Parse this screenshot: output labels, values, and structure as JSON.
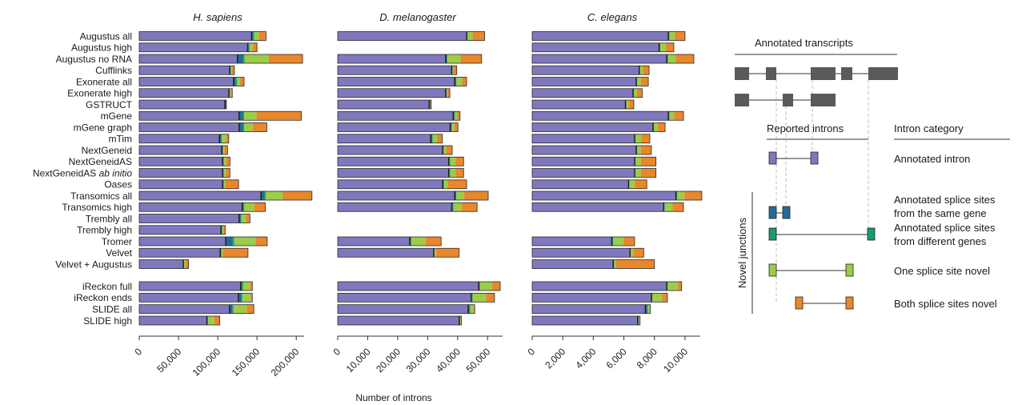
{
  "x_axis_title": "Number of introns",
  "rows": [
    {
      "label": "Augustus all"
    },
    {
      "label": "Augustus high"
    },
    {
      "label": "Augustus no RNA"
    },
    {
      "label": "Cufflinks"
    },
    {
      "label": "Exonerate all"
    },
    {
      "label": "Exonerate high"
    },
    {
      "label": "GSTRUCT"
    },
    {
      "label": "mGene"
    },
    {
      "label": "mGene graph"
    },
    {
      "label": "mTim"
    },
    {
      "label": "NextGeneid"
    },
    {
      "label": "NextGeneidAS"
    },
    {
      "label": "NextGeneidAS ",
      "label_italic": "ab initio"
    },
    {
      "label": "Oases"
    },
    {
      "label": "Transomics all"
    },
    {
      "label": "Transomics high"
    },
    {
      "label": "Trembly all"
    },
    {
      "label": "Trembly high"
    },
    {
      "label": "Tromer"
    },
    {
      "label": "Velvet"
    },
    {
      "label": "Velvet + Augustus"
    },
    {
      "label": "iReckon full"
    },
    {
      "label": "iReckon ends"
    },
    {
      "label": "SLIDE all"
    },
    {
      "label": "SLIDE high"
    }
  ],
  "chart_data": {
    "type": "bar",
    "orientation": "horizontal",
    "stacked": true,
    "categories": [
      "Augustus all",
      "Augustus high",
      "Augustus no RNA",
      "Cufflinks",
      "Exonerate all",
      "Exonerate high",
      "GSTRUCT",
      "mGene",
      "mGene graph",
      "mTim",
      "NextGeneid",
      "NextGeneidAS",
      "NextGeneidAS ab initio",
      "Oases",
      "Transomics all",
      "Transomics high",
      "Trembly all",
      "Trembly high",
      "Tromer",
      "Velvet",
      "Velvet + Augustus",
      "iReckon full",
      "iReckon ends",
      "SLIDE all",
      "SLIDE high"
    ],
    "series": [
      {
        "name": "Annotated intron",
        "color": "#7f78bd"
      },
      {
        "name": "Annotated splice sites from the same gene",
        "color": "#246b9c"
      },
      {
        "name": "Annotated splice sites from different genes",
        "color": "#1b9a6c"
      },
      {
        "name": "One splice site novel",
        "color": "#9ccc4a"
      },
      {
        "name": "Both splice sites novel",
        "color": "#e8872b"
      }
    ],
    "panels": [
      {
        "title": "H. sapiens",
        "xlim": [
          0,
          210000
        ],
        "ticks": [
          0,
          50000,
          100000,
          150000,
          200000
        ],
        "tick_labels": [
          "0",
          "50,000",
          "100,000",
          "150,000",
          "200,000"
        ],
        "values": [
          [
            143000,
            2000,
            1500,
            6000,
            9000
          ],
          [
            138000,
            1500,
            1000,
            4000,
            5500
          ],
          [
            125000,
            7000,
            2000,
            31000,
            43000
          ],
          [
            115000,
            1000,
            700,
            1500,
            3000
          ],
          [
            120000,
            3000,
            1500,
            4000,
            5000
          ],
          [
            114000,
            1000,
            500,
            1000,
            2000
          ],
          [
            109000,
            1500,
            500,
            0,
            0
          ],
          [
            127000,
            5000,
            1500,
            16000,
            57000
          ],
          [
            127000,
            5000,
            1500,
            11000,
            18000
          ],
          [
            102000,
            2000,
            1000,
            6000,
            3000
          ],
          [
            105000,
            1000,
            500,
            2000,
            4000
          ],
          [
            106000,
            1000,
            500,
            3000,
            5000
          ],
          [
            106000,
            1000,
            500,
            3000,
            5000
          ],
          [
            106000,
            1000,
            500,
            2000,
            17000
          ],
          [
            155000,
            4000,
            2000,
            22000,
            37000
          ],
          [
            131000,
            1500,
            1000,
            13000,
            14000
          ],
          [
            127000,
            2000,
            1000,
            6000,
            5000
          ],
          [
            104000,
            1000,
            500,
            2000,
            2000
          ],
          [
            110000,
            9000,
            2000,
            27000,
            15000
          ],
          [
            103000,
            1000,
            500,
            2000,
            32000
          ],
          [
            56000,
            500,
            300,
            2000,
            4000
          ],
          [
            129000,
            2000,
            1000,
            9000,
            3000
          ],
          [
            126000,
            4000,
            1000,
            11000,
            2000
          ],
          [
            115000,
            4000,
            1000,
            17000,
            9000
          ],
          [
            86000,
            1000,
            500,
            8000,
            7000
          ]
        ]
      },
      {
        "title": "D. melanogaster",
        "xlim": [
          0,
          55000
        ],
        "ticks": [
          0,
          10000,
          20000,
          30000,
          40000,
          50000
        ],
        "tick_labels": [
          "0",
          "10,000",
          "20,000",
          "30,000",
          "40,000",
          "50,000"
        ],
        "values": [
          [
            43000,
            200,
            100,
            1700,
            4000
          ],
          null,
          [
            36000,
            400,
            200,
            4400,
            7000
          ],
          [
            38000,
            200,
            100,
            400,
            1000
          ],
          [
            39000,
            400,
            200,
            1900,
            1500
          ],
          [
            36000,
            200,
            100,
            400,
            700
          ],
          [
            30500,
            300,
            100,
            0,
            300
          ],
          [
            38500,
            400,
            200,
            700,
            1000
          ],
          [
            37500,
            400,
            200,
            800,
            1200
          ],
          [
            31000,
            500,
            200,
            1400,
            1800
          ],
          [
            35000,
            300,
            100,
            800,
            2000
          ],
          [
            37000,
            300,
            200,
            1800,
            2700
          ],
          [
            37000,
            300,
            200,
            1800,
            2700
          ],
          [
            35000,
            300,
            200,
            1200,
            6300
          ],
          [
            39000,
            400,
            200,
            2600,
            8000
          ],
          [
            38000,
            400,
            200,
            2700,
            5200
          ],
          null,
          null,
          [
            24000,
            400,
            200,
            4700,
            5200
          ],
          [
            32000,
            200,
            100,
            500,
            7700
          ],
          null,
          [
            47000,
            300,
            200,
            4000,
            2700
          ],
          [
            44500,
            300,
            200,
            4500,
            2800
          ],
          [
            43500,
            500,
            200,
            1200,
            300
          ],
          [
            40500,
            200,
            100,
            300,
            200
          ]
        ]
      },
      {
        "title": "C. elegans",
        "xlim": [
          0,
          11000
        ],
        "ticks": [
          0,
          2000,
          4000,
          6000,
          8000,
          10000
        ],
        "tick_labels": [
          "0",
          "2,000",
          "4,000",
          "6,000",
          "8,000",
          "10,000"
        ],
        "values": [
          [
            8900,
            50,
            30,
            370,
            650
          ],
          [
            8300,
            50,
            20,
            380,
            520
          ],
          [
            8800,
            50,
            30,
            520,
            1180
          ],
          [
            7000,
            30,
            20,
            200,
            400
          ],
          [
            6800,
            40,
            20,
            250,
            490
          ],
          [
            6600,
            30,
            20,
            200,
            350
          ],
          [
            6100,
            30,
            20,
            150,
            350
          ],
          [
            8900,
            50,
            30,
            320,
            600
          ],
          [
            7900,
            40,
            20,
            250,
            490
          ],
          [
            6700,
            40,
            20,
            370,
            570
          ],
          [
            6800,
            40,
            20,
            250,
            690
          ],
          [
            6700,
            40,
            20,
            350,
            990
          ],
          [
            6700,
            40,
            20,
            350,
            990
          ],
          [
            6300,
            30,
            20,
            370,
            780
          ],
          [
            9400,
            50,
            30,
            480,
            1140
          ],
          [
            8600,
            50,
            30,
            510,
            710
          ],
          null,
          null,
          [
            5200,
            60,
            40,
            660,
            740
          ],
          [
            6400,
            30,
            20,
            180,
            670
          ],
          [
            5300,
            40,
            20,
            140,
            2500
          ],
          [
            8800,
            40,
            30,
            680,
            230
          ],
          [
            7800,
            40,
            30,
            640,
            340
          ],
          [
            7400,
            130,
            40,
            120,
            40
          ],
          [
            6900,
            60,
            20,
            60,
            20
          ]
        ]
      }
    ]
  },
  "schematic": {
    "annotated_title": "Annotated transcripts",
    "reported_title": "Reported introns",
    "category_title": "Intron category",
    "novel_label": "Novel junctions",
    "exon_color": "#5a5a5a",
    "categories": [
      {
        "lines": [
          "Annotated intron"
        ],
        "color": "#7f78bd"
      },
      {
        "lines": [
          "Annotated splice sites",
          "from the same gene"
        ],
        "color": "#246b9c"
      },
      {
        "lines": [
          "Annotated splice sites",
          "from different genes"
        ],
        "color": "#1b9a6c"
      },
      {
        "lines": [
          "One splice site novel"
        ],
        "color": "#9ccc4a"
      },
      {
        "lines": [
          "Both splice sites novel"
        ],
        "color": "#e8872b"
      }
    ]
  }
}
